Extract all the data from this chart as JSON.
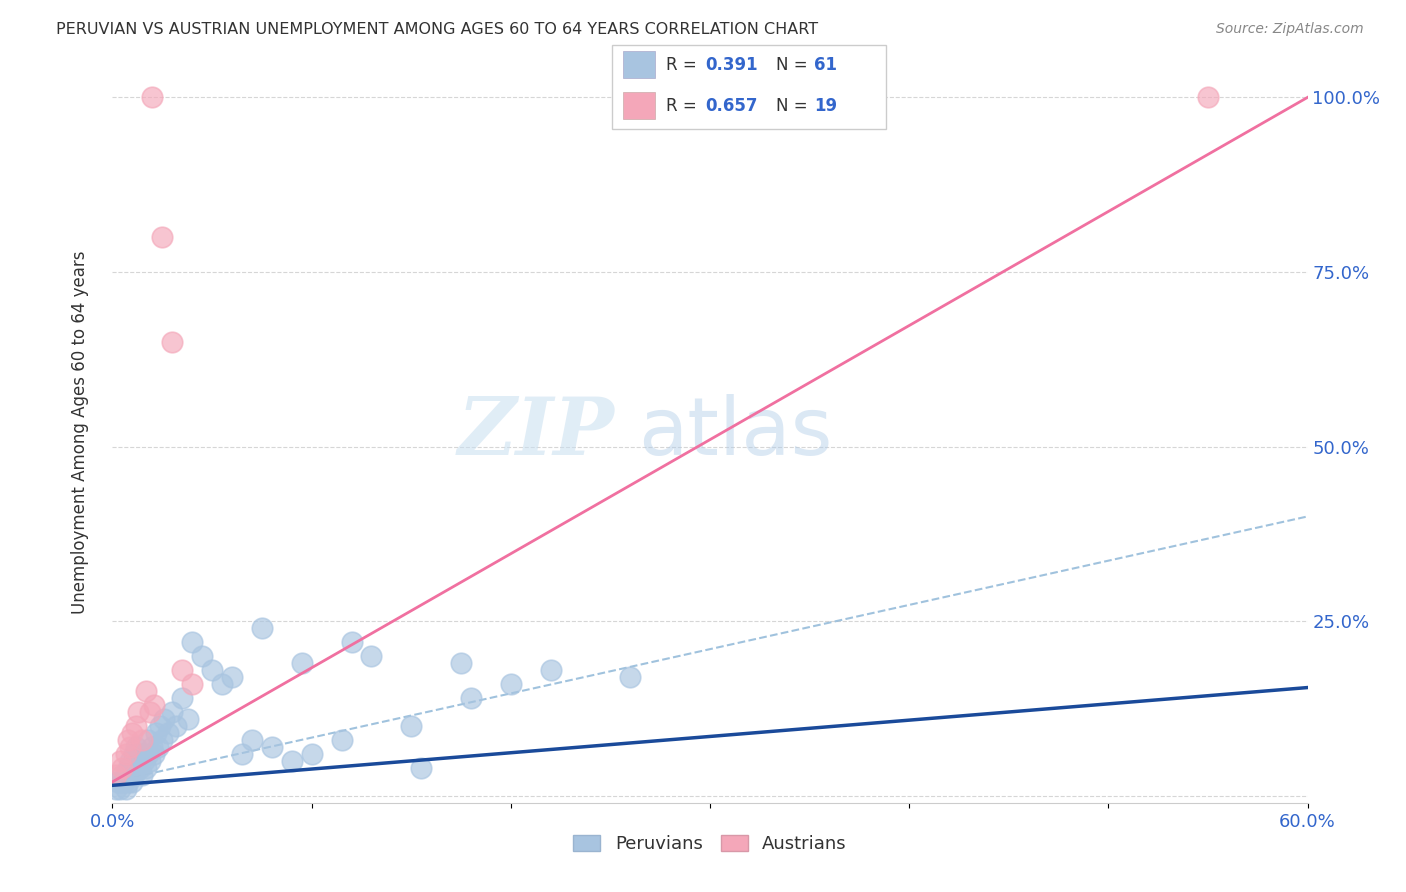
{
  "title": "PERUVIAN VS AUSTRIAN UNEMPLOYMENT AMONG AGES 60 TO 64 YEARS CORRELATION CHART",
  "source": "Source: ZipAtlas.com",
  "ylabel": "Unemployment Among Ages 60 to 64 years",
  "yticks": [
    0.0,
    0.25,
    0.5,
    0.75,
    1.0
  ],
  "ytick_labels": [
    "",
    "25.0%",
    "50.0%",
    "75.0%",
    "100.0%"
  ],
  "xtick_positions": [
    0.0,
    0.1,
    0.2,
    0.3,
    0.4,
    0.5,
    0.6
  ],
  "xtick_labels": [
    "0.0%",
    "",
    "",
    "",
    "",
    "",
    "60.0%"
  ],
  "xlim": [
    0.0,
    0.6
  ],
  "ylim": [
    -0.01,
    1.05
  ],
  "peruvian_color": "#a8c4e0",
  "austrian_color": "#f4a7b9",
  "peruvian_line_color": "#1a4a9a",
  "austrian_line_color": "#f070a0",
  "dashed_line_color": "#90b8d8",
  "legend_bottom_peruvian": "Peruvians",
  "legend_bottom_austrian": "Austrians",
  "watermark_zip": "ZIP",
  "watermark_atlas": "atlas",
  "peruvian_scatter_x": [
    0.002,
    0.003,
    0.004,
    0.005,
    0.005,
    0.006,
    0.007,
    0.007,
    0.008,
    0.008,
    0.009,
    0.009,
    0.01,
    0.01,
    0.011,
    0.011,
    0.012,
    0.012,
    0.013,
    0.014,
    0.015,
    0.015,
    0.016,
    0.017,
    0.018,
    0.018,
    0.019,
    0.02,
    0.021,
    0.022,
    0.023,
    0.024,
    0.025,
    0.026,
    0.028,
    0.03,
    0.032,
    0.035,
    0.038,
    0.04,
    0.045,
    0.05,
    0.055,
    0.06,
    0.065,
    0.07,
    0.08,
    0.09,
    0.1,
    0.115,
    0.13,
    0.155,
    0.175,
    0.2,
    0.22,
    0.26,
    0.18,
    0.15,
    0.12,
    0.095,
    0.075
  ],
  "peruvian_scatter_y": [
    0.01,
    0.02,
    0.01,
    0.02,
    0.03,
    0.02,
    0.01,
    0.03,
    0.02,
    0.04,
    0.03,
    0.05,
    0.02,
    0.04,
    0.03,
    0.06,
    0.04,
    0.07,
    0.05,
    0.04,
    0.03,
    0.06,
    0.05,
    0.04,
    0.06,
    0.08,
    0.05,
    0.07,
    0.06,
    0.09,
    0.07,
    0.1,
    0.08,
    0.11,
    0.09,
    0.12,
    0.1,
    0.14,
    0.11,
    0.22,
    0.2,
    0.18,
    0.16,
    0.17,
    0.06,
    0.08,
    0.07,
    0.05,
    0.06,
    0.08,
    0.2,
    0.04,
    0.19,
    0.16,
    0.18,
    0.17,
    0.14,
    0.1,
    0.22,
    0.19,
    0.24
  ],
  "austrian_scatter_x": [
    0.002,
    0.004,
    0.005,
    0.007,
    0.008,
    0.009,
    0.01,
    0.012,
    0.013,
    0.015,
    0.017,
    0.019,
    0.021,
    0.025,
    0.03,
    0.035,
    0.04,
    0.02,
    0.55
  ],
  "austrian_scatter_y": [
    0.03,
    0.05,
    0.04,
    0.06,
    0.08,
    0.07,
    0.09,
    0.1,
    0.12,
    0.08,
    0.15,
    0.12,
    0.13,
    0.8,
    0.65,
    0.18,
    0.16,
    1.0,
    1.0
  ],
  "peruvian_trendline_x": [
    0.0,
    0.6
  ],
  "peruvian_trendline_y": [
    0.015,
    0.155
  ],
  "austrian_trendline_x": [
    0.0,
    0.6
  ],
  "austrian_trendline_y": [
    0.02,
    1.0
  ],
  "dashed_trendline_x": [
    0.0,
    0.6
  ],
  "dashed_trendline_y": [
    0.02,
    0.4
  ]
}
